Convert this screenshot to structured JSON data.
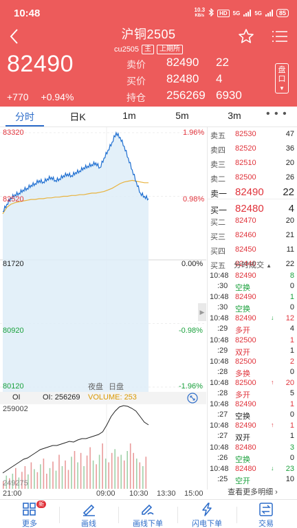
{
  "status": {
    "time": "10:48",
    "speed": "10.3",
    "speed_unit": "KB/s",
    "hd": "HD",
    "net1": "5G",
    "net2": "5G",
    "battery": "85"
  },
  "header": {
    "title": "沪铜2505",
    "code": "cu2505",
    "tag_main": "主",
    "exchange": "上期所"
  },
  "price": {
    "last": "82490",
    "change": "+770",
    "change_pct": "+0.94%"
  },
  "quotes": {
    "ask": {
      "label": "卖价",
      "price": "82490",
      "vol": "22"
    },
    "bid": {
      "label": "买价",
      "price": "82480",
      "vol": "4"
    },
    "oi": {
      "label": "持仓",
      "price": "256269",
      "vol": "6930"
    }
  },
  "pan_button": {
    "label1": "盘",
    "label2": "口"
  },
  "tabs": [
    "分时",
    "日K",
    "1m",
    "5m",
    "3m"
  ],
  "tabs_more": "• • •",
  "chart": {
    "y_left": [
      "83320",
      "82520",
      "81720",
      "80920",
      "80120"
    ],
    "y_right": [
      "1.96%",
      "0.98%",
      "0.00%",
      "-0.98%",
      "-1.96%"
    ],
    "sessions": [
      "夜盘",
      "日盘"
    ],
    "oi_label": "OI",
    "oi_value": "OI: 256269",
    "volume_value": "VOLUME: 253",
    "vol_top": "259002",
    "vol_bottom": "249275",
    "time_axis": [
      "21:00",
      "09:00",
      "10:30",
      "13:30",
      "15:00"
    ],
    "colors": {
      "price_line": "#1f6fd1",
      "avg_line": "#e8b23c",
      "fill": "#dcecf8",
      "red": "#e0323a",
      "green": "#1aa13c"
    }
  },
  "chart_data": {
    "type": "line",
    "series": [
      {
        "values": [
          82330,
          82420,
          82500,
          82540,
          82560,
          82600,
          82620,
          82660,
          82680,
          82720,
          82700,
          82740,
          82760,
          82720,
          82740,
          82780,
          82800,
          82780,
          82820,
          82840,
          82880,
          82900,
          82920,
          82940,
          82880,
          83000,
          83100,
          83200,
          83320,
          83260,
          83150,
          83000,
          82850,
          82700,
          82560,
          82520,
          82490
        ]
      },
      {
        "values": [
          82300,
          82380,
          82420,
          82440,
          82450,
          82460,
          82470,
          82480,
          82480,
          82490,
          82490,
          82500,
          82500,
          82510,
          82510,
          82520,
          82520,
          82530,
          82530,
          82540,
          82540,
          82550,
          82560,
          82560,
          82570,
          82580,
          82600,
          82620,
          82650,
          82680,
          82700,
          82710,
          82720,
          82710,
          82700,
          82690,
          82690
        ]
      }
    ],
    "ylim": [
      80120,
      83320
    ]
  },
  "book": {
    "asks": [
      {
        "label": "卖五",
        "price": "82530",
        "vol": "47"
      },
      {
        "label": "卖四",
        "price": "82520",
        "vol": "36"
      },
      {
        "label": "卖三",
        "price": "82510",
        "vol": "20"
      },
      {
        "label": "卖二",
        "price": "82500",
        "vol": "26"
      },
      {
        "label": "卖一",
        "price": "82490",
        "vol": "22"
      }
    ],
    "bids": [
      {
        "label": "买一",
        "price": "82480",
        "vol": "4"
      },
      {
        "label": "买二",
        "price": "82470",
        "vol": "20"
      },
      {
        "label": "买三",
        "price": "82460",
        "vol": "21"
      },
      {
        "label": "买四",
        "price": "82450",
        "vol": "11"
      },
      {
        "label": "买五",
        "price": "82440",
        "vol": "22"
      }
    ],
    "trades_title": "分时成交",
    "trades": [
      {
        "time": "10:48",
        "sec": ":30",
        "price": "82490",
        "arrow": "",
        "qty": "8",
        "type": "空换",
        "num": "0",
        "qty_color": "grn",
        "type_color": "grn"
      },
      {
        "time": "10:48",
        "sec": ":30",
        "price": "82490",
        "arrow": "",
        "qty": "1",
        "type": "空换",
        "num": "0",
        "qty_color": "grn",
        "type_color": "grn"
      },
      {
        "time": "10:48",
        "sec": ":29",
        "price": "82490",
        "arrow": "↓",
        "qty": "12",
        "type": "多开",
        "num": "4",
        "qty_color": "red",
        "type_color": "red"
      },
      {
        "time": "10:48",
        "sec": ":29",
        "price": "82500",
        "arrow": "",
        "qty": "1",
        "type": "双开",
        "num": "1",
        "qty_color": "red",
        "type_color": "red"
      },
      {
        "time": "10:48",
        "sec": ":28",
        "price": "82500",
        "arrow": "",
        "qty": "2",
        "type": "多换",
        "num": "0",
        "qty_color": "red",
        "type_color": "red"
      },
      {
        "time": "10:48",
        "sec": ":28",
        "price": "82500",
        "arrow": "↑",
        "qty": "20",
        "type": "多开",
        "num": "5",
        "qty_color": "red",
        "type_color": "red"
      },
      {
        "time": "10:48",
        "sec": ":27",
        "price": "82490",
        "arrow": "",
        "qty": "1",
        "type": "空换",
        "num": "0",
        "qty_color": "red",
        "type_color": "blk"
      },
      {
        "time": "10:48",
        "sec": ":27",
        "price": "82490",
        "arrow": "↑",
        "qty": "1",
        "type": "双开",
        "num": "1",
        "qty_color": "red",
        "type_color": "blk"
      },
      {
        "time": "10:48",
        "sec": ":26",
        "price": "82480",
        "arrow": "",
        "qty": "3",
        "type": "空换",
        "num": "0",
        "qty_color": "grn",
        "type_color": "grn"
      },
      {
        "time": "10:48",
        "sec": ":25",
        "price": "82480",
        "arrow": "↓",
        "qty": "23",
        "type": "空开",
        "num": "10",
        "qty_color": "grn",
        "type_color": "grn"
      }
    ],
    "see_more": "查看更多明细 ›"
  },
  "bottom": {
    "items": [
      {
        "label": "更多",
        "icon": "grid-icon"
      },
      {
        "label": "画线",
        "icon": "pen-icon"
      },
      {
        "label": "画线下单",
        "icon": "draw-order-icon"
      },
      {
        "label": "闪电下单",
        "icon": "lightning-icon"
      },
      {
        "label": "交易",
        "icon": "swap-icon"
      }
    ],
    "badge": "新"
  }
}
